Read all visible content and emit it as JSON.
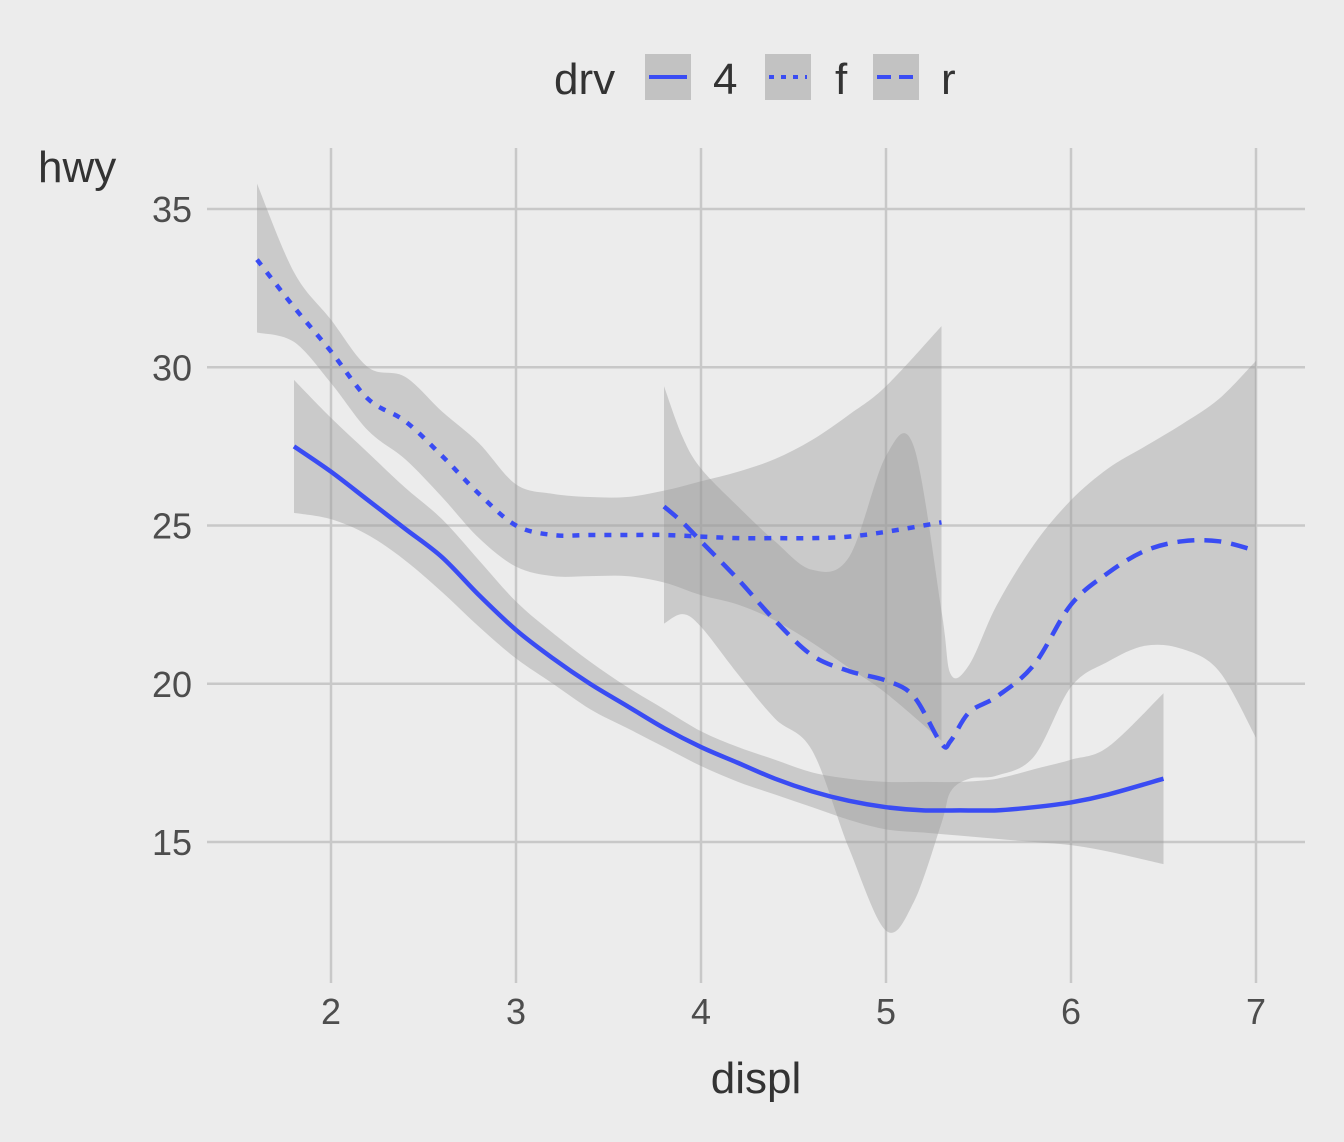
{
  "chart_data": {
    "type": "line",
    "xlabel": "displ",
    "ylabel": "hwy",
    "xlim": [
      1.6,
      7.0
    ],
    "ylim": [
      11.5,
      36
    ],
    "x_ticks": [
      2,
      3,
      4,
      5,
      6,
      7
    ],
    "y_ticks": [
      15,
      20,
      25,
      30,
      35
    ],
    "grid": true,
    "smoothing_band": true,
    "legend": {
      "title": "drv",
      "position": "top",
      "entries": [
        {
          "label": "4",
          "linetype": "solid"
        },
        {
          "label": "f",
          "linetype": "dotted"
        },
        {
          "label": "r",
          "linetype": "dashed"
        }
      ]
    },
    "colors": {
      "line": "#3a4cf3",
      "band": "#999999",
      "background": "#ececec",
      "grid": "#c8c8c8"
    },
    "series": [
      {
        "name": "4",
        "linetype": "solid",
        "x": [
          1.8,
          2.0,
          2.2,
          2.4,
          2.6,
          2.8,
          3.0,
          3.2,
          3.4,
          3.6,
          3.8,
          4.0,
          4.2,
          4.4,
          4.6,
          4.8,
          5.0,
          5.2,
          5.4,
          5.6,
          5.8,
          6.0,
          6.2,
          6.5
        ],
        "y": [
          27.5,
          26.7,
          25.8,
          24.9,
          24.0,
          22.8,
          21.7,
          20.8,
          20.0,
          19.3,
          18.6,
          18.0,
          17.5,
          17.0,
          16.6,
          16.3,
          16.1,
          16.0,
          16.0,
          16.0,
          16.1,
          16.25,
          16.5,
          17.0
        ],
        "upper": [
          29.6,
          28.4,
          27.3,
          26.2,
          25.2,
          23.9,
          22.6,
          21.6,
          20.7,
          19.9,
          19.2,
          18.5,
          18.0,
          17.6,
          17.2,
          17.0,
          16.9,
          16.9,
          16.9,
          17.0,
          17.3,
          17.6,
          18.0,
          19.7
        ],
        "lower": [
          25.4,
          25.2,
          24.7,
          23.9,
          22.9,
          21.8,
          20.8,
          20.0,
          19.2,
          18.6,
          18.0,
          17.4,
          16.9,
          16.5,
          16.1,
          15.7,
          15.4,
          15.3,
          15.2,
          15.1,
          15.0,
          14.9,
          14.7,
          14.3
        ]
      },
      {
        "name": "f",
        "linetype": "dotted",
        "x": [
          1.6,
          1.8,
          2.0,
          2.2,
          2.4,
          2.6,
          2.8,
          3.0,
          3.2,
          3.4,
          3.6,
          3.8,
          4.0,
          4.2,
          4.4,
          4.6,
          4.8,
          5.0,
          5.3
        ],
        "y": [
          33.4,
          31.9,
          30.5,
          29.0,
          28.3,
          27.2,
          26.0,
          25.0,
          24.7,
          24.7,
          24.7,
          24.7,
          24.65,
          24.6,
          24.6,
          24.6,
          24.65,
          24.8,
          25.1
        ],
        "upper": [
          35.8,
          33.0,
          31.5,
          30.0,
          29.7,
          28.6,
          27.6,
          26.3,
          26.0,
          25.9,
          25.9,
          26.1,
          26.4,
          26.7,
          27.1,
          27.7,
          28.5,
          29.4,
          31.3
        ],
        "lower": [
          31.1,
          30.8,
          29.5,
          28.0,
          27.1,
          25.9,
          24.6,
          23.7,
          23.4,
          23.4,
          23.4,
          23.2,
          22.8,
          22.5,
          22.0,
          21.3,
          20.5,
          19.7,
          18.2
        ]
      },
      {
        "name": "r",
        "linetype": "dashed",
        "x": [
          3.8,
          3.9,
          4.0,
          4.2,
          4.4,
          4.6,
          4.8,
          5.0,
          5.15,
          5.3,
          5.35,
          5.45,
          5.6,
          5.8,
          6.0,
          6.2,
          6.4,
          6.6,
          6.8,
          7.0
        ],
        "y": [
          25.6,
          25.1,
          24.5,
          23.3,
          22.0,
          20.9,
          20.4,
          20.1,
          19.6,
          18.1,
          18.2,
          19.1,
          19.6,
          20.6,
          22.5,
          23.5,
          24.2,
          24.5,
          24.5,
          24.2
        ],
        "upper": [
          29.4,
          27.8,
          26.8,
          25.6,
          24.5,
          23.6,
          24.0,
          27.2,
          27.5,
          22.3,
          20.3,
          20.6,
          22.5,
          24.4,
          25.8,
          26.8,
          27.5,
          28.2,
          29.0,
          30.2
        ],
        "lower": [
          21.9,
          22.2,
          21.8,
          20.3,
          18.9,
          17.9,
          14.8,
          12.2,
          13.1,
          15.6,
          16.6,
          17.0,
          17.1,
          17.7,
          19.9,
          20.7,
          21.2,
          21.1,
          20.4,
          18.3
        ]
      }
    ]
  }
}
